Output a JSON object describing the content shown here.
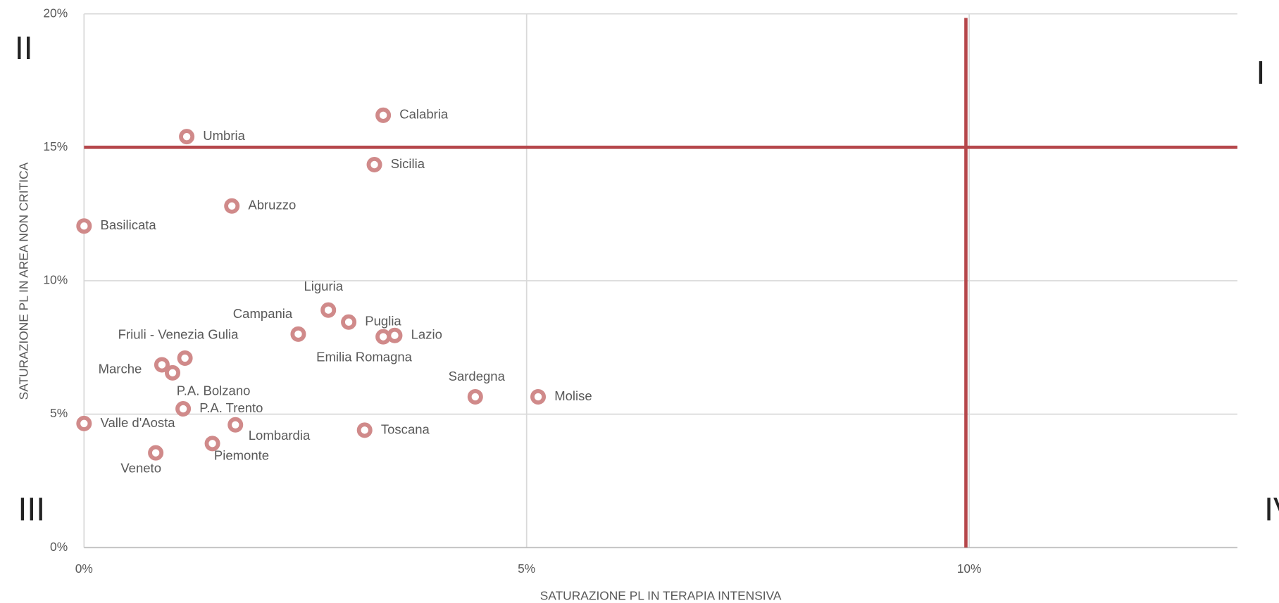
{
  "chart_data": {
    "type": "scatter",
    "x_label": "SATURAZIONE PL IN TERAPIA INTENSIVA",
    "y_label": "SATURAZIONE PL IN AREA NON CRITICA",
    "xlim": [
      0,
      13.03
    ],
    "ylim": [
      0,
      20
    ],
    "xticks": [
      {
        "value": 0,
        "label": "0%"
      },
      {
        "value": 5,
        "label": "5%"
      },
      {
        "value": 10,
        "label": "10%"
      }
    ],
    "yticks": [
      {
        "value": 0,
        "label": "0%"
      },
      {
        "value": 5,
        "label": "5%"
      },
      {
        "value": 10,
        "label": "10%"
      },
      {
        "value": 15,
        "label": "15%"
      },
      {
        "value": 20,
        "label": "20%"
      }
    ],
    "grid": true,
    "color": "#d08a8a",
    "threshold_color": "#b5474b",
    "thresholds": {
      "x": 10,
      "y": 15
    },
    "quadrants": [
      "I",
      "II",
      "III",
      "IV"
    ],
    "labels": [
      "Calabria",
      "Umbria",
      "Sicilia",
      "Abruzzo",
      "Basilicata",
      "Liguria",
      "Puglia",
      "Campania",
      "Lazio",
      "Emilia Romagna",
      "Friuli - Venezia Gulia",
      "Marche",
      "P.A. Bolzano",
      "Sardegna",
      "Molise",
      "P.A. Trento",
      "Valle d'Aosta",
      "Lombardia",
      "Toscana",
      "Piemonte",
      "Veneto"
    ],
    "x": [
      3.38,
      1.16,
      3.28,
      1.67,
      0,
      2.76,
      2.99,
      2.42,
      3.51,
      3.38,
      1.14,
      0.88,
      1.0,
      4.42,
      5.13,
      1.12,
      0,
      1.71,
      3.17,
      1.45,
      0.81
    ],
    "y": [
      16.2,
      15.4,
      14.35,
      12.8,
      12.05,
      8.9,
      8.45,
      8.0,
      7.95,
      7.9,
      7.1,
      6.85,
      6.55,
      5.65,
      5.65,
      5.2,
      4.65,
      4.6,
      4.4,
      3.9,
      3.55
    ]
  }
}
